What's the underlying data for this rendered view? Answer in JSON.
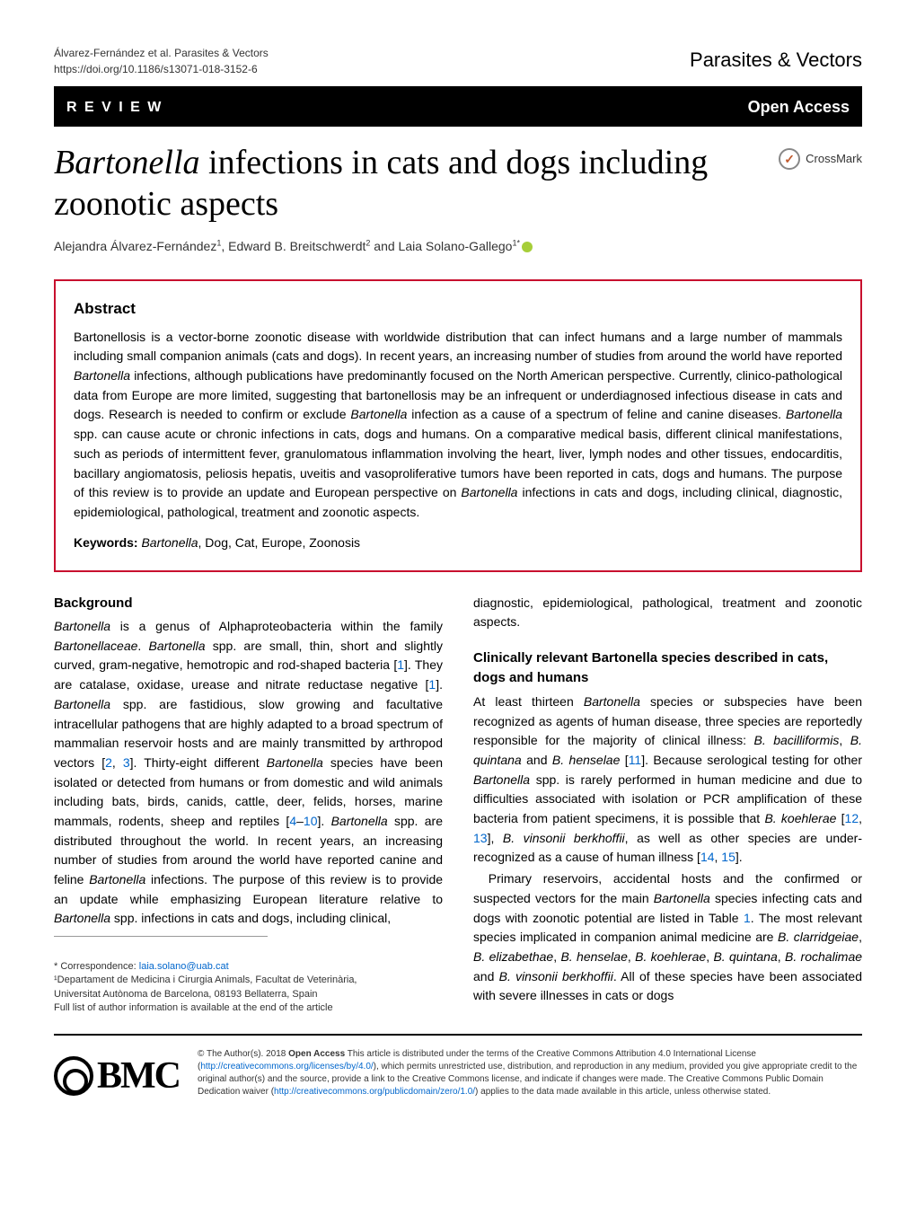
{
  "header": {
    "citation_line1": "Álvarez-Fernández et al. Parasites & Vectors",
    "citation_line2": "https://doi.org/10.1186/s13071-018-3152-6",
    "journal_brand": "Parasites & Vectors"
  },
  "review_bar": {
    "label": "R E V I E W",
    "open_access": "Open Access"
  },
  "title": {
    "italic_part": "Bartonella",
    "rest": " infections in cats and dogs including zoonotic aspects"
  },
  "crossmark_label": "CrossMark",
  "authors_html": "Alejandra Álvarez-Fernández<sup>1</sup>, Edward B. Breitschwerdt<sup>2</sup> and Laia Solano-Gallego<sup>1*</sup>",
  "abstract": {
    "heading": "Abstract",
    "text": "Bartonellosis is a vector-borne zoonotic disease with worldwide distribution that can infect humans and a large number of mammals including small companion animals (cats and dogs). In recent years, an increasing number of studies from around the world have reported <span class=\"italic\">Bartonella</span> infections, although publications have predominantly focused on the North American perspective. Currently, clinico-pathological data from Europe are more limited, suggesting that bartonellosis may be an infrequent or underdiagnosed infectious disease in cats and dogs. Research is needed to confirm or exclude <span class=\"italic\">Bartonella</span> infection as a cause of a spectrum of feline and canine diseases. <span class=\"italic\">Bartonella</span> spp. can cause acute or chronic infections in cats, dogs and humans. On a comparative medical basis, different clinical manifestations, such as periods of intermittent fever, granulomatous inflammation involving the heart, liver, lymph nodes and other tissues, endocarditis, bacillary angiomatosis, peliosis hepatis, uveitis and vasoproliferative tumors have been reported in cats, dogs and humans. The purpose of this review is to provide an update and European perspective on <span class=\"italic\">Bartonella</span> infections in cats and dogs, including clinical, diagnostic, epidemiological, pathological, treatment and zoonotic aspects.",
    "keywords_label": "Keywords:",
    "keywords_text": "<span class=\"italic\">Bartonella</span>, Dog, Cat, Europe, Zoonosis"
  },
  "sections": {
    "background_heading": "Background",
    "background_text": "<span class=\"italic\">Bartonella</span> is a genus of Alphaproteobacteria within the family <span class=\"italic\">Bartonellaceae</span>. <span class=\"italic\">Bartonella</span> spp. are small, thin, short and slightly curved, gram-negative, hemotropic and rod-shaped bacteria [<span class=\"ref-link\">1</span>]. They are catalase, oxidase, urease and nitrate reductase negative [<span class=\"ref-link\">1</span>]. <span class=\"italic\">Bartonella</span> spp. are fastidious, slow growing and facultative intracellular pathogens that are highly adapted to a broad spectrum of mammalian reservoir hosts and are mainly transmitted by arthropod vectors [<span class=\"ref-link\">2</span>, <span class=\"ref-link\">3</span>]. Thirty-eight different <span class=\"italic\">Bartonella</span> species have been isolated or detected from humans or from domestic and wild animals including bats, birds, canids, cattle, deer, felids, horses, marine mammals, rodents, sheep and reptiles [<span class=\"ref-link\">4</span>–<span class=\"ref-link\">10</span>]. <span class=\"italic\">Bartonella</span> spp. are distributed throughout the world. In recent years, an increasing number of studies from around the world have reported canine and feline <span class=\"italic\">Bartonella</span> infections. The purpose of this review is to provide an update while emphasizing European literature relative to <span class=\"italic\">Bartonella</span> spp. infections in cats and dogs, including clinical,",
    "col2_intro": "diagnostic, epidemiological, pathological, treatment and zoonotic aspects.",
    "clinical_heading": "Clinically relevant <span class=\"italic\">Bartonella</span> species described in cats, dogs and humans",
    "clinical_text": "At least thirteen <span class=\"italic\">Bartonella</span> species or subspecies have been recognized as agents of human disease, three species are reportedly responsible for the majority of clinical illness: <span class=\"italic\">B. bacilliformis</span>, <span class=\"italic\">B. quintana</span> and <span class=\"italic\">B. henselae</span> [<span class=\"ref-link\">11</span>]. Because serological testing for other <span class=\"italic\">Bartonella</span> spp. is rarely performed in human medicine and due to difficulties associated with isolation or PCR amplification of these bacteria from patient specimens, it is possible that <span class=\"italic\">B. koehlerae</span> [<span class=\"ref-link\">12</span>, <span class=\"ref-link\">13</span>], <span class=\"italic\">B. vinsonii berkhoffii</span>, as well as other species are under-recognized as a cause of human illness [<span class=\"ref-link\">14</span>, <span class=\"ref-link\">15</span>].",
    "clinical_text2": "Primary reservoirs, accidental hosts and the confirmed or suspected vectors for the main <span class=\"italic\">Bartonella</span> species infecting cats and dogs with zoonotic potential are listed in Table <span class=\"ref-link\">1</span>. The most relevant species implicated in companion animal medicine are <span class=\"italic\">B. clarridgeiae</span>, <span class=\"italic\">B. elizabethae</span>, <span class=\"italic\">B. henselae</span>, <span class=\"italic\">B. koehlerae</span>, <span class=\"italic\">B. quintana</span>, <span class=\"italic\">B. rochalimae</span> and <span class=\"italic\">B. vinsonii berkhoffii</span>. All of these species have been associated with severe illnesses in cats or dogs"
  },
  "correspondence": {
    "label": "* Correspondence: ",
    "email": "laia.solano@uab.cat",
    "affil_line1": "¹Departament de Medicina i Cirurgia Animals, Facultat de Veterinària,",
    "affil_line2": "Universitat Autònoma de Barcelona, 08193 Bellaterra, Spain",
    "affil_line3": "Full list of author information is available at the end of the article"
  },
  "footer": {
    "bmc": "BMC",
    "license": "© The Author(s). 2018 <b>Open Access</b> This article is distributed under the terms of the Creative Commons Attribution 4.0 International License (<span class=\"link\">http://creativecommons.org/licenses/by/4.0/</span>), which permits unrestricted use, distribution, and reproduction in any medium, provided you give appropriate credit to the original author(s) and the source, provide a link to the Creative Commons license, and indicate if changes were made. The Creative Commons Public Domain Dedication waiver (<span class=\"link\">http://creativecommons.org/publicdomain/zero/1.0/</span>) applies to the data made available in this article, unless otherwise stated."
  },
  "colors": {
    "accent_red": "#c8102e",
    "link_blue": "#0066cc",
    "text": "#000000",
    "background": "#ffffff"
  }
}
